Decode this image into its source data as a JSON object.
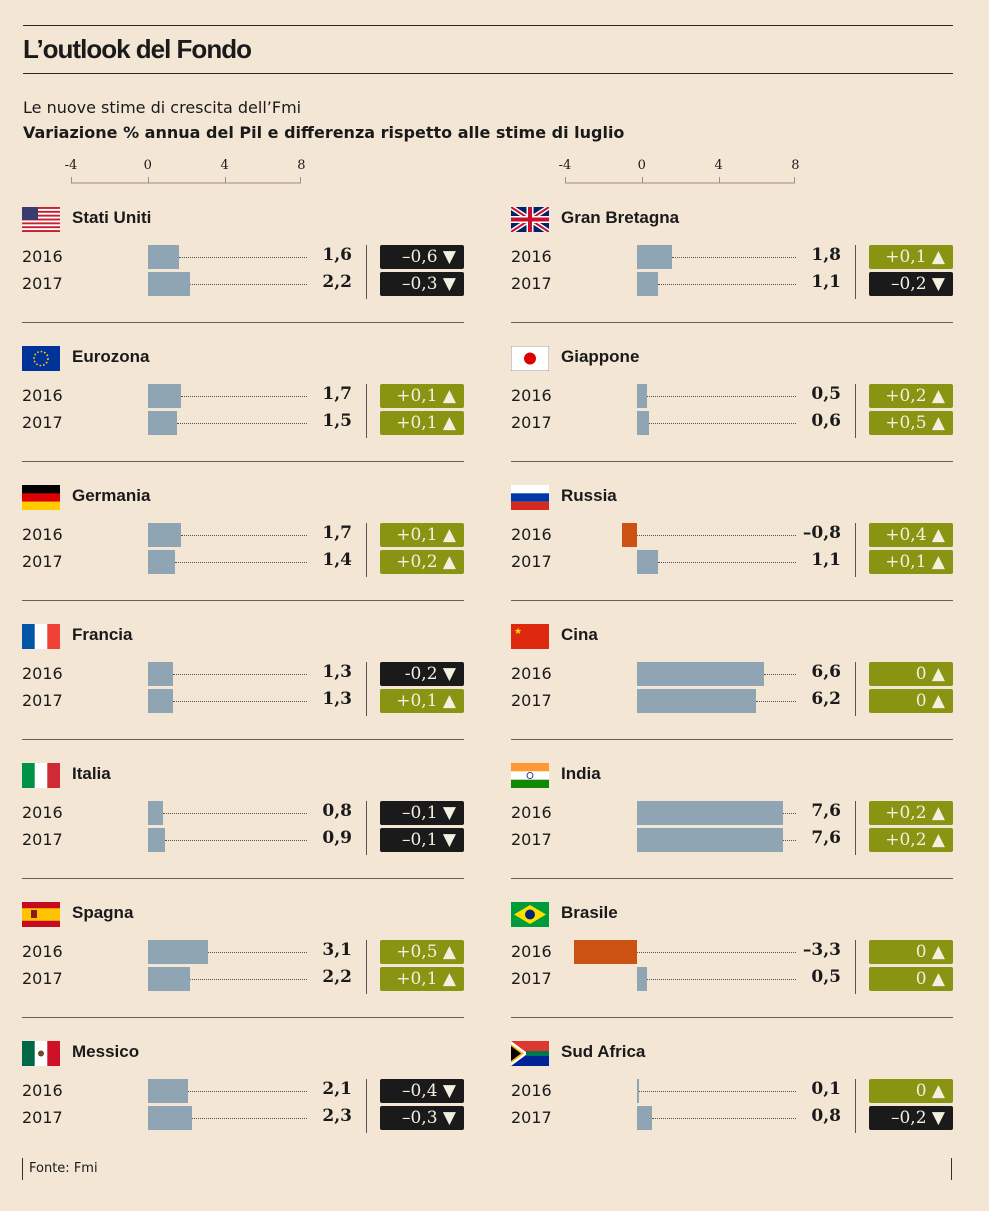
{
  "title": "L’outlook del Fondo",
  "subtitle": "Le nuove stime di crescita dell’Fmi",
  "description": "Variazione % annua del Pil e differenza rispetto alle stime di luglio",
  "source": "Fonte: Fmi",
  "colors": {
    "background": "#f3e6d5",
    "bar_positive": "#8fa5b3",
    "bar_negative": "#cc5213",
    "badge_up": "#8a9413",
    "badge_down": "#1a1a1a"
  },
  "chart_data": {
    "type": "bar",
    "title": "L’outlook del Fondo",
    "xlabel": "Variazione % annua del Pil",
    "xlim": [
      -4,
      8
    ],
    "ticks": [
      "-4",
      "0",
      "4",
      "8"
    ],
    "tick_values": [
      -4,
      0,
      4,
      8
    ],
    "years": [
      "2016",
      "2017"
    ],
    "countries": [
      {
        "name": "Stati Uniti",
        "flag": "us-flag",
        "values": [
          1.6,
          2.2
        ],
        "labels": [
          "1,6",
          "2,2"
        ],
        "diff": [
          "–0,6 ▼",
          "–0,3 ▼"
        ],
        "dir": [
          "down",
          "down"
        ]
      },
      {
        "name": "Gran Bretagna",
        "flag": "uk-flag",
        "values": [
          1.8,
          1.1
        ],
        "labels": [
          "1,8",
          "1,1"
        ],
        "diff": [
          "+0,1 ▲",
          "–0,2 ▼"
        ],
        "dir": [
          "up",
          "down"
        ]
      },
      {
        "name": "Eurozona",
        "flag": "eu-flag",
        "values": [
          1.7,
          1.5
        ],
        "labels": [
          "1,7",
          "1,5"
        ],
        "diff": [
          "+0,1 ▲",
          "+0,1 ▲"
        ],
        "dir": [
          "up",
          "up"
        ]
      },
      {
        "name": "Giappone",
        "flag": "japan-flag",
        "values": [
          0.5,
          0.6
        ],
        "labels": [
          "0,5",
          "0,6"
        ],
        "diff": [
          "+0,2 ▲",
          "+0,5 ▲"
        ],
        "dir": [
          "up",
          "up"
        ]
      },
      {
        "name": "Germania",
        "flag": "germany-flag",
        "values": [
          1.7,
          1.4
        ],
        "labels": [
          "1,7",
          "1,4"
        ],
        "diff": [
          "+0,1 ▲",
          "+0,2 ▲"
        ],
        "dir": [
          "up",
          "up"
        ]
      },
      {
        "name": "Russia",
        "flag": "russia-flag",
        "values": [
          -0.8,
          1.1
        ],
        "labels": [
          "–0,8",
          "1,1"
        ],
        "diff": [
          "+0,4 ▲",
          "+0,1 ▲"
        ],
        "dir": [
          "up",
          "up"
        ]
      },
      {
        "name": "Francia",
        "flag": "france-flag",
        "values": [
          1.3,
          1.3
        ],
        "labels": [
          "1,3",
          "1,3"
        ],
        "diff": [
          "-0,2 ▼",
          "+0,1 ▲"
        ],
        "dir": [
          "down",
          "up"
        ]
      },
      {
        "name": "Cina",
        "flag": "china-flag",
        "values": [
          6.6,
          6.2
        ],
        "labels": [
          "6,6",
          "6,2"
        ],
        "diff": [
          "0 ▲",
          "0 ▲"
        ],
        "dir": [
          "up",
          "up"
        ]
      },
      {
        "name": "Italia",
        "flag": "italy-flag",
        "values": [
          0.8,
          0.9
        ],
        "labels": [
          "0,8",
          "0,9"
        ],
        "diff": [
          "–0,1 ▼",
          "–0,1 ▼"
        ],
        "dir": [
          "down",
          "down"
        ]
      },
      {
        "name": "India",
        "flag": "india-flag",
        "values": [
          7.6,
          7.6
        ],
        "labels": [
          "7,6",
          "7,6"
        ],
        "diff": [
          "+0,2 ▲",
          "+0,2 ▲"
        ],
        "dir": [
          "up",
          "up"
        ]
      },
      {
        "name": "Spagna",
        "flag": "spain-flag",
        "values": [
          3.1,
          2.2
        ],
        "labels": [
          "3,1",
          "2,2"
        ],
        "diff": [
          "+0,5 ▲",
          "+0,1 ▲"
        ],
        "dir": [
          "up",
          "up"
        ]
      },
      {
        "name": "Brasile",
        "flag": "brazil-flag",
        "values": [
          -3.3,
          0.5
        ],
        "labels": [
          "–3,3",
          "0,5"
        ],
        "diff": [
          "0 ▲",
          "0 ▲"
        ],
        "dir": [
          "up",
          "up"
        ]
      },
      {
        "name": "Messico",
        "flag": "mexico-flag",
        "values": [
          2.1,
          2.3
        ],
        "labels": [
          "2,1",
          "2,3"
        ],
        "diff": [
          "–0,4 ▼",
          "–0,3 ▼"
        ],
        "dir": [
          "down",
          "down"
        ]
      },
      {
        "name": "Sud Africa",
        "flag": "south-africa-flag",
        "values": [
          0.1,
          0.8
        ],
        "labels": [
          "0,1",
          "0,8"
        ],
        "diff": [
          "0 ▲",
          "–0,2 ▼"
        ],
        "dir": [
          "up",
          "down"
        ]
      }
    ]
  }
}
